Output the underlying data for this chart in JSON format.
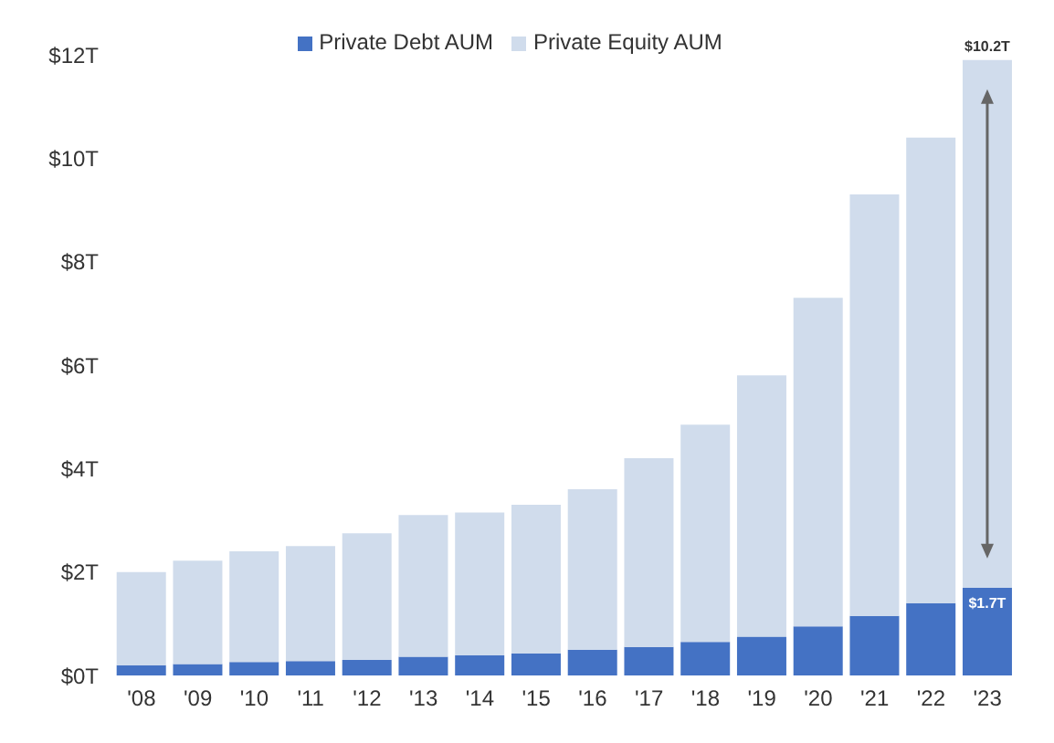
{
  "chart_data": {
    "type": "bar",
    "stacked": true,
    "categories": [
      "'08",
      "'09",
      "'10",
      "'11",
      "'12",
      "'13",
      "'14",
      "'15",
      "'16",
      "'17",
      "'18",
      "'19",
      "'20",
      "'21",
      "'22",
      "'23"
    ],
    "series": [
      {
        "name": "Private Debt AUM",
        "color": "#4472c4",
        "values": [
          0.2,
          0.22,
          0.26,
          0.28,
          0.3,
          0.36,
          0.39,
          0.43,
          0.5,
          0.55,
          0.65,
          0.75,
          0.95,
          1.15,
          1.4,
          1.7
        ],
        "value_labels": [
          null,
          null,
          null,
          null,
          null,
          null,
          null,
          null,
          null,
          null,
          null,
          null,
          null,
          null,
          null,
          "$1.7T"
        ]
      },
      {
        "name": "Private Equity AUM",
        "color": "#d0dcec",
        "values": [
          1.8,
          2.0,
          2.14,
          2.22,
          2.45,
          2.74,
          2.76,
          2.87,
          3.1,
          3.65,
          4.2,
          5.05,
          6.35,
          8.15,
          9.0,
          10.2
        ],
        "value_labels": [
          null,
          null,
          null,
          null,
          null,
          null,
          null,
          null,
          null,
          null,
          null,
          null,
          null,
          null,
          null,
          "$10.2T"
        ]
      }
    ],
    "ylim": [
      0,
      12
    ],
    "yticks": [
      {
        "value": 0,
        "label": "$0T"
      },
      {
        "value": 2,
        "label": "$2T"
      },
      {
        "value": 4,
        "label": "$4T"
      },
      {
        "value": 6,
        "label": "$6T"
      },
      {
        "value": 8,
        "label": "$8T"
      },
      {
        "value": 10,
        "label": "$10T"
      },
      {
        "value": 12,
        "label": "$12T"
      }
    ],
    "legend": "top"
  }
}
